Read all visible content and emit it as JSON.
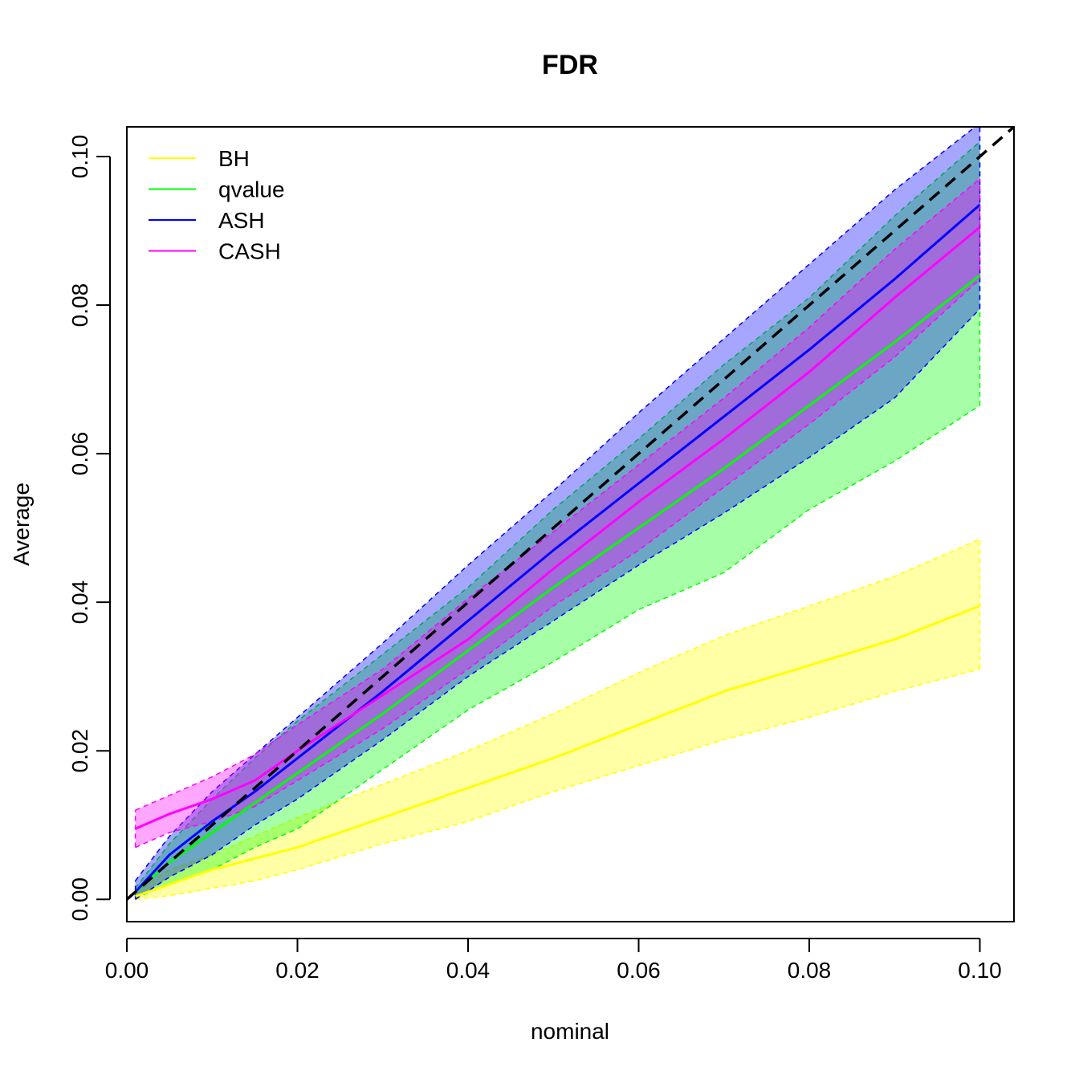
{
  "chart_data": {
    "type": "line",
    "title": "FDR",
    "xlabel": "nominal",
    "ylabel": "Average",
    "xlim": [
      0.0,
      0.104
    ],
    "ylim": [
      -0.003,
      0.104
    ],
    "x_ticks": [
      "0.00",
      "0.02",
      "0.04",
      "0.06",
      "0.08",
      "0.10"
    ],
    "y_ticks": [
      "0.00",
      "0.02",
      "0.04",
      "0.06",
      "0.08",
      "0.10"
    ],
    "grid": false,
    "legend_position": "top-left",
    "reference_line": {
      "style": "dashed",
      "color": "#000000",
      "from": [
        0,
        0
      ],
      "to": [
        0.104,
        0.104
      ]
    },
    "x": [
      0.001,
      0.005,
      0.01,
      0.015,
      0.02,
      0.03,
      0.04,
      0.05,
      0.06,
      0.07,
      0.08,
      0.09,
      0.1
    ],
    "series": [
      {
        "name": "BH",
        "color": "#ffff00",
        "mean": [
          0.0004,
          0.002,
          0.004,
          0.0055,
          0.007,
          0.011,
          0.015,
          0.019,
          0.0235,
          0.028,
          0.0315,
          0.035,
          0.0395
        ],
        "lower": [
          0.0,
          0.0005,
          0.0015,
          0.0025,
          0.004,
          0.0075,
          0.0105,
          0.0145,
          0.018,
          0.0215,
          0.0245,
          0.028,
          0.031
        ],
        "upper": [
          0.001,
          0.004,
          0.006,
          0.0085,
          0.011,
          0.0155,
          0.02,
          0.025,
          0.0305,
          0.0355,
          0.0395,
          0.0435,
          0.0485
        ]
      },
      {
        "name": "qvalue",
        "color": "#00ff00",
        "mean": [
          0.001,
          0.005,
          0.009,
          0.013,
          0.017,
          0.025,
          0.0335,
          0.042,
          0.05,
          0.058,
          0.0665,
          0.075,
          0.084
        ],
        "lower": [
          0.0002,
          0.002,
          0.004,
          0.007,
          0.0095,
          0.0175,
          0.0255,
          0.032,
          0.039,
          0.044,
          0.0525,
          0.059,
          0.0665
        ],
        "upper": [
          0.0015,
          0.0075,
          0.0135,
          0.019,
          0.024,
          0.033,
          0.042,
          0.0525,
          0.062,
          0.072,
          0.081,
          0.092,
          0.102
        ]
      },
      {
        "name": "ASH",
        "color": "#0000ff",
        "mean": [
          0.001,
          0.006,
          0.0105,
          0.0145,
          0.019,
          0.028,
          0.0375,
          0.047,
          0.056,
          0.065,
          0.074,
          0.0835,
          0.0935
        ],
        "lower": [
          0.0,
          0.003,
          0.006,
          0.01,
          0.0135,
          0.0215,
          0.03,
          0.0375,
          0.045,
          0.052,
          0.0595,
          0.0675,
          0.0795
        ],
        "upper": [
          0.0025,
          0.0085,
          0.0145,
          0.0195,
          0.0245,
          0.0345,
          0.045,
          0.055,
          0.0655,
          0.0755,
          0.0855,
          0.0955,
          0.1045
        ]
      },
      {
        "name": "CASH",
        "color": "#ff00ff",
        "mean": [
          0.0095,
          0.0115,
          0.0135,
          0.016,
          0.02,
          0.0275,
          0.035,
          0.0445,
          0.0535,
          0.062,
          0.071,
          0.081,
          0.0905
        ],
        "lower": [
          0.007,
          0.009,
          0.0105,
          0.0125,
          0.016,
          0.023,
          0.031,
          0.0395,
          0.047,
          0.0555,
          0.064,
          0.073,
          0.0835
        ],
        "upper": [
          0.012,
          0.014,
          0.0165,
          0.0195,
          0.0235,
          0.031,
          0.0405,
          0.0495,
          0.0585,
          0.0675,
          0.077,
          0.0875,
          0.097
        ]
      }
    ]
  }
}
